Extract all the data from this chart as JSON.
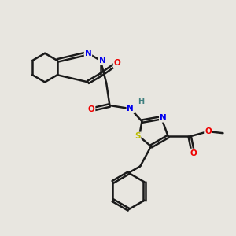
{
  "background_color": "#e8e6e0",
  "bond_color": "#1a1a1a",
  "bond_width": 1.8,
  "atom_colors": {
    "N": "#0000ee",
    "O": "#ee0000",
    "S": "#bbbb00",
    "H": "#408080",
    "C": "#1a1a1a"
  },
  "figsize": [
    3.0,
    3.0
  ],
  "dpi": 100
}
